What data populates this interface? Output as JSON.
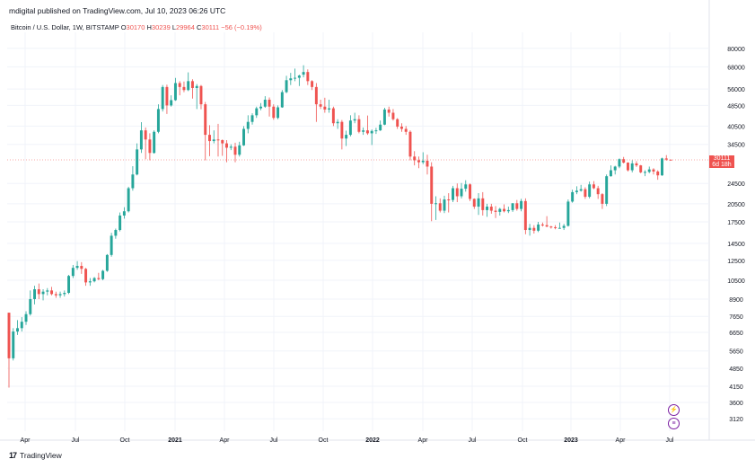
{
  "header": {
    "publisher": "mdigital published on TradingView.com, Jul 10, 2023 06:26 UTC",
    "symbol": "Bitcoin / U.S. Dollar, 1W, BITSTAMP",
    "o_label": "O",
    "o_value": "30170",
    "h_label": "H",
    "h_value": "30239",
    "l_label": "L",
    "l_value": "29964",
    "c_label": "C",
    "c_value": "30111",
    "change": "−56 (−0.19%)"
  },
  "price_badge": {
    "price": "30111",
    "countdown": "6d 18h"
  },
  "footer": {
    "brand": "TradingView"
  },
  "icons": {
    "lightning": "lightning-icon",
    "flag": "us-flag-icon"
  },
  "colors": {
    "up": "#26a69a",
    "down": "#ef5350",
    "grid": "#f0f3fa",
    "axis_text": "#131722"
  },
  "chart_data": {
    "type": "candlestick",
    "title": "Bitcoin / U.S. Dollar, 1W, BITSTAMP",
    "y_scale": "log",
    "y_ticks": [
      3120,
      3600,
      4150,
      4850,
      5650,
      6650,
      7650,
      8900,
      10500,
      12500,
      14500,
      17500,
      20500,
      24500,
      34500,
      40500,
      48500,
      56000,
      68000,
      80000
    ],
    "ylim": [
      2800,
      92000
    ],
    "x_ticks": [
      "Apr",
      "Jul",
      "Oct",
      "2021",
      "Apr",
      "Jul",
      "Oct",
      "2022",
      "Apr",
      "Jul",
      "Oct",
      "2023",
      "Apr",
      "Jul"
    ],
    "current_price": 30111,
    "candles": [
      [
        7900,
        7900,
        4100,
        5300
      ],
      [
        5300,
        6900,
        5200,
        6700
      ],
      [
        6700,
        7400,
        6500,
        6900
      ],
      [
        6900,
        7600,
        6700,
        7300
      ],
      [
        7300,
        8000,
        7100,
        7800
      ],
      [
        7800,
        9600,
        7700,
        8900
      ],
      [
        8900,
        10000,
        8500,
        9700
      ],
      [
        9700,
        10200,
        8900,
        9300
      ],
      [
        9300,
        9700,
        8800,
        9500
      ],
      [
        9500,
        9800,
        9200,
        9600
      ],
      [
        9600,
        9900,
        9200,
        9300
      ],
      [
        9300,
        9500,
        9000,
        9200
      ],
      [
        9200,
        9500,
        9000,
        9300
      ],
      [
        9300,
        9600,
        9100,
        9400
      ],
      [
        9400,
        11000,
        9300,
        10900
      ],
      [
        10900,
        12000,
        10700,
        11700
      ],
      [
        11700,
        12400,
        11500,
        11900
      ],
      [
        11900,
        12300,
        11100,
        11600
      ],
      [
        11600,
        11700,
        10000,
        10300
      ],
      [
        10300,
        10700,
        10000,
        10400
      ],
      [
        10400,
        10800,
        10300,
        10700
      ],
      [
        10700,
        11200,
        10500,
        10600
      ],
      [
        10600,
        11500,
        10500,
        11400
      ],
      [
        11400,
        13200,
        11300,
        13100
      ],
      [
        13100,
        15900,
        12900,
        15500
      ],
      [
        15500,
        16500,
        15100,
        16300
      ],
      [
        16300,
        19000,
        16100,
        18500
      ],
      [
        18500,
        19900,
        18000,
        19200
      ],
      [
        19200,
        23800,
        19000,
        23500
      ],
      [
        23500,
        28500,
        23000,
        26500
      ],
      [
        26500,
        34800,
        26300,
        33000
      ],
      [
        33000,
        41900,
        32000,
        39000
      ],
      [
        39000,
        40000,
        30300,
        36000
      ],
      [
        36000,
        38000,
        30000,
        32000
      ],
      [
        32000,
        39000,
        31800,
        38500
      ],
      [
        38500,
        49000,
        38000,
        47000
      ],
      [
        47000,
        58000,
        46000,
        57000
      ],
      [
        57000,
        58200,
        45000,
        48500
      ],
      [
        48500,
        53000,
        48000,
        50800
      ],
      [
        50800,
        61700,
        50500,
        59000
      ],
      [
        59000,
        60000,
        53000,
        57000
      ],
      [
        57000,
        59800,
        54500,
        55500
      ],
      [
        55500,
        64800,
        55000,
        60000
      ],
      [
        60000,
        61000,
        51500,
        56500
      ],
      [
        56500,
        58500,
        47000,
        57500
      ],
      [
        57500,
        58000,
        46900,
        49000
      ],
      [
        49000,
        50000,
        30000,
        37500
      ],
      [
        37500,
        40800,
        31100,
        35500
      ],
      [
        35500,
        39000,
        34800,
        36000
      ],
      [
        36000,
        41300,
        31000,
        35800
      ],
      [
        35800,
        36000,
        31200,
        34800
      ],
      [
        34800,
        35800,
        29500,
        33500
      ],
      [
        33500,
        34500,
        32800,
        33800
      ],
      [
        33800,
        35000,
        29500,
        31500
      ],
      [
        31500,
        35300,
        31000,
        34200
      ],
      [
        34200,
        40500,
        34000,
        39500
      ],
      [
        39500,
        44500,
        38000,
        42000
      ],
      [
        42000,
        45300,
        41000,
        44500
      ],
      [
        44500,
        48000,
        43500,
        47300
      ],
      [
        47300,
        49500,
        46500,
        48000
      ],
      [
        48000,
        52600,
        47500,
        51000
      ],
      [
        51000,
        52000,
        44000,
        48000
      ],
      [
        48000,
        49000,
        42800,
        43500
      ],
      [
        43500,
        48500,
        43000,
        47700
      ],
      [
        47700,
        55500,
        47500,
        54500
      ],
      [
        54500,
        62900,
        54000,
        60500
      ],
      [
        60500,
        64500,
        58000,
        61500
      ],
      [
        61500,
        67000,
        60000,
        61800
      ],
      [
        61800,
        63500,
        57500,
        63000
      ],
      [
        63500,
        69000,
        62000,
        65000
      ],
      [
        65000,
        66500,
        58000,
        60000
      ],
      [
        60000,
        60500,
        55500,
        57000
      ],
      [
        57000,
        59000,
        42000,
        49000
      ],
      [
        49000,
        51000,
        47000,
        48000
      ],
      [
        48000,
        51900,
        45500,
        46800
      ],
      [
        46800,
        51000,
        45500,
        47300
      ],
      [
        47300,
        48000,
        40500,
        41500
      ],
      [
        41500,
        43000,
        39500,
        42000
      ],
      [
        42000,
        42700,
        33000,
        36300
      ],
      [
        36300,
        38900,
        34000,
        37500
      ],
      [
        37500,
        44500,
        37000,
        42500
      ],
      [
        42500,
        45500,
        41500,
        43000
      ],
      [
        43000,
        44500,
        38000,
        38500
      ],
      [
        38500,
        40000,
        37500,
        39000
      ],
      [
        39000,
        44400,
        37500,
        38000
      ],
      [
        38000,
        39300,
        34300,
        38800
      ],
      [
        38800,
        39900,
        37800,
        39000
      ],
      [
        39000,
        42500,
        38800,
        41000
      ],
      [
        41000,
        47500,
        40800,
        46800
      ],
      [
        46800,
        48000,
        44000,
        45500
      ],
      [
        45500,
        47000,
        42500,
        43000
      ],
      [
        43000,
        43400,
        39500,
        40300
      ],
      [
        40300,
        41500,
        38500,
        39500
      ],
      [
        39500,
        40500,
        37500,
        38500
      ],
      [
        38500,
        39000,
        30000,
        31000
      ],
      [
        31000,
        32500,
        28700,
        30000
      ],
      [
        30000,
        31000,
        28000,
        29500
      ],
      [
        29500,
        32200,
        29000,
        29900
      ],
      [
        29900,
        31500,
        26500,
        28400
      ],
      [
        28400,
        29500,
        17600,
        20500
      ],
      [
        20500,
        21900,
        17800,
        20600
      ],
      [
        20600,
        21500,
        19000,
        19300
      ],
      [
        19300,
        22000,
        18900,
        21300
      ],
      [
        21300,
        22500,
        19000,
        21200
      ],
      [
        21200,
        24000,
        20800,
        23500
      ],
      [
        23500,
        24500,
        20800,
        21900
      ],
      [
        21900,
        24600,
        21500,
        23400
      ],
      [
        23400,
        25200,
        22800,
        24300
      ],
      [
        24300,
        24500,
        21000,
        21400
      ],
      [
        21400,
        21500,
        19600,
        20000
      ],
      [
        20000,
        22500,
        18600,
        21500
      ],
      [
        21500,
        22700,
        18500,
        19400
      ],
      [
        19400,
        20500,
        18300,
        20000
      ],
      [
        20000,
        20500,
        18800,
        19300
      ],
      [
        19300,
        20100,
        18100,
        19100
      ],
      [
        19100,
        19800,
        18500,
        19600
      ],
      [
        19600,
        20400,
        19000,
        19200
      ],
      [
        19200,
        20000,
        18900,
        19400
      ],
      [
        19400,
        20600,
        19100,
        20600
      ],
      [
        20600,
        21200,
        19300,
        19600
      ],
      [
        19600,
        21400,
        19200,
        21000
      ],
      [
        21000,
        21500,
        15700,
        16300
      ],
      [
        16300,
        17200,
        15500,
        16600
      ],
      [
        16600,
        17000,
        15800,
        16200
      ],
      [
        16200,
        17500,
        16000,
        17100
      ],
      [
        17100,
        17400,
        16800,
        17000
      ],
      [
        17000,
        18400,
        16700,
        16800
      ],
      [
        16800,
        16900,
        16500,
        16700
      ],
      [
        16700,
        17000,
        16400,
        16600
      ],
      [
        16600,
        17400,
        16500,
        16600
      ],
      [
        16600,
        17200,
        16300,
        16900
      ],
      [
        16900,
        21300,
        16800,
        20900
      ],
      [
        20900,
        23200,
        20700,
        22700
      ],
      [
        22700,
        23900,
        22300,
        23000
      ],
      [
        23000,
        24200,
        22800,
        23300
      ],
      [
        23300,
        23700,
        21400,
        21800
      ],
      [
        21800,
        24900,
        21500,
        24300
      ],
      [
        24300,
        25000,
        23300,
        23500
      ],
      [
        23500,
        24000,
        21400,
        22300
      ],
      [
        22300,
        22500,
        19600,
        20500
      ],
      [
        20500,
        26500,
        20100,
        26100
      ],
      [
        26100,
        28700,
        26000,
        27500
      ],
      [
        27500,
        28600,
        26500,
        28400
      ],
      [
        28400,
        30500,
        28000,
        30300
      ],
      [
        30300,
        30900,
        29200,
        29400
      ],
      [
        29400,
        29500,
        27200,
        27500
      ],
      [
        27500,
        30000,
        27000,
        29200
      ],
      [
        29200,
        29800,
        28300,
        28700
      ],
      [
        28700,
        28800,
        26800,
        27000
      ],
      [
        27000,
        27500,
        26100,
        27100
      ],
      [
        27100,
        28400,
        26800,
        27700
      ],
      [
        27700,
        28000,
        26500,
        27200
      ],
      [
        27200,
        27500,
        25300,
        26300
      ],
      [
        26300,
        30700,
        26200,
        30500
      ],
      [
        30500,
        31400,
        29900,
        30200
      ],
      [
        30170,
        30239,
        29964,
        30111
      ]
    ]
  }
}
